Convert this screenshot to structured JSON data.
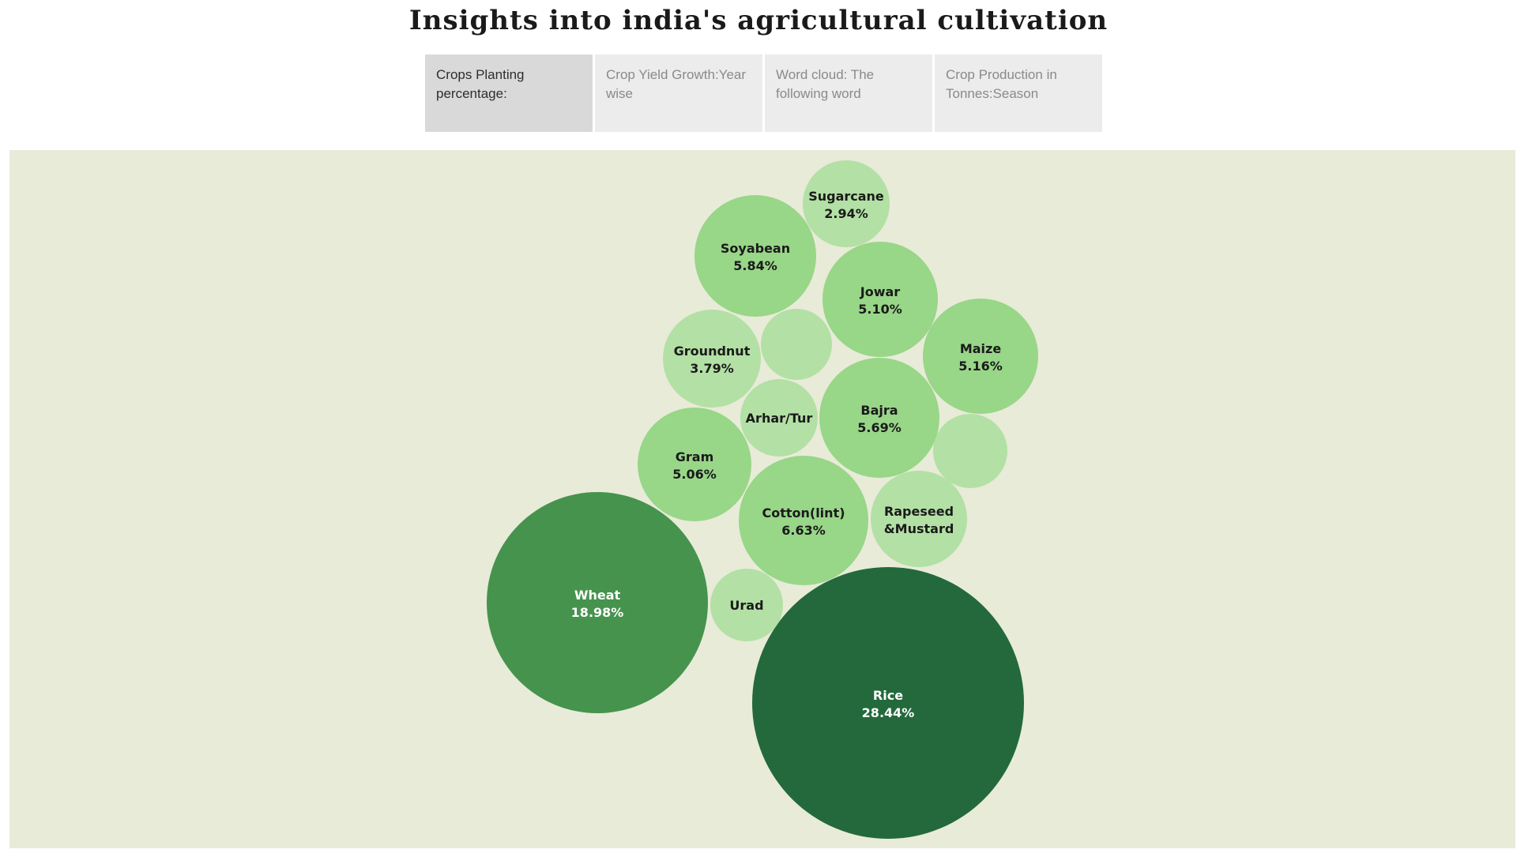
{
  "header": {
    "title": "Insights into india's agricultural cultivation"
  },
  "tabs": [
    {
      "label": "Crops Planting percentage:",
      "active": true
    },
    {
      "label": "Crop Yield Growth:Year wise",
      "active": false
    },
    {
      "label": "Word cloud: The following word",
      "active": false
    },
    {
      "label": "Crop Production in Tonnes:Season",
      "active": false
    }
  ],
  "chart_data": {
    "type": "bubble",
    "title": "",
    "bubbles": [
      {
        "name": "Rice",
        "value": 28.44,
        "label": "Rice",
        "value_label": "28.44%",
        "color": "#23693c"
      },
      {
        "name": "Wheat",
        "value": 18.98,
        "label": "Wheat",
        "value_label": "18.98%",
        "color": "#46934e"
      },
      {
        "name": "Cotton(lint)",
        "value": 6.63,
        "label": "Cotton(lint)",
        "value_label": "6.63%",
        "color": "#98d688"
      },
      {
        "name": "Soyabean",
        "value": 5.84,
        "label": "Soyabean",
        "value_label": "5.84%",
        "color": "#98d688"
      },
      {
        "name": "Bajra",
        "value": 5.69,
        "label": "Bajra",
        "value_label": "5.69%",
        "color": "#98d688"
      },
      {
        "name": "Maize",
        "value": 5.16,
        "label": "Maize",
        "value_label": "5.16%",
        "color": "#98d688"
      },
      {
        "name": "Jowar",
        "value": 5.1,
        "label": "Jowar",
        "value_label": "5.10%",
        "color": "#98d688"
      },
      {
        "name": "Gram",
        "value": 5.06,
        "label": "Gram",
        "value_label": "5.06%",
        "color": "#98d688"
      },
      {
        "name": "Groundnut",
        "value": 3.79,
        "label": "Groundnut",
        "value_label": "3.79%",
        "color": "#b3e0a5"
      },
      {
        "name": "Rapeseed &Mustard",
        "value": 3.7,
        "label": "Rapeseed",
        "value_label": "&Mustard",
        "color": "#b3e0a5"
      },
      {
        "name": "Sugarcane",
        "value": 2.94,
        "label": "Sugarcane",
        "value_label": "2.94%",
        "color": "#b3e0a5"
      },
      {
        "name": "Arhar/Tur",
        "value": 2.4,
        "label": "Arhar/Tur",
        "value_label": "",
        "color": "#b3e0a5"
      },
      {
        "name": "Urad",
        "value": 2.2,
        "label": "Urad",
        "value_label": "",
        "color": "#b3e0a5"
      },
      {
        "name": "",
        "value": 2.2,
        "label": "",
        "value_label": "",
        "color": "#b3e0a5"
      },
      {
        "name": "",
        "value": 2.1,
        "label": "",
        "value_label": "",
        "color": "#b3e0a5"
      }
    ],
    "label_color_dark": "#1a1a1a",
    "label_color_light": "#ffffff"
  }
}
